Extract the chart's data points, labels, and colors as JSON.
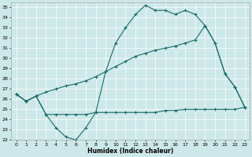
{
  "xlabel": "Humidex (Indice chaleur)",
  "xlim": [
    -0.5,
    23.5
  ],
  "ylim": [
    22,
    35.5
  ],
  "yticks": [
    22,
    23,
    24,
    25,
    26,
    27,
    28,
    29,
    30,
    31,
    32,
    33,
    34,
    35
  ],
  "xticks": [
    0,
    1,
    2,
    3,
    4,
    5,
    6,
    7,
    8,
    9,
    10,
    11,
    12,
    13,
    14,
    15,
    16,
    17,
    18,
    19,
    20,
    21,
    22,
    23
  ],
  "bg_color": "#cde8e8",
  "line_color": "#1a6b6b",
  "grid_color": "#ffffff",
  "line1_x": [
    0,
    1,
    2,
    3,
    4,
    5,
    6,
    7,
    8,
    9,
    10,
    11,
    12,
    13,
    14,
    15,
    16,
    17,
    18,
    19,
    20,
    21,
    22,
    23
  ],
  "line1_y": [
    26.5,
    25.8,
    26.3,
    24.5,
    23.2,
    22.3,
    22.0,
    23.2,
    24.7,
    28.7,
    31.5,
    33.0,
    34.3,
    35.2,
    34.7,
    34.7,
    34.3,
    34.7,
    34.3,
    33.2,
    31.5,
    28.5,
    27.2,
    25.2
  ],
  "line2_x": [
    0,
    1,
    2,
    3,
    4,
    5,
    6,
    7,
    8,
    9,
    10,
    11,
    12,
    13,
    14,
    15,
    16,
    17,
    18,
    19,
    20,
    21,
    22,
    23
  ],
  "line2_y": [
    26.5,
    25.8,
    26.3,
    26.7,
    27.0,
    27.3,
    27.5,
    27.8,
    28.2,
    28.7,
    29.2,
    29.7,
    30.2,
    30.5,
    30.8,
    31.0,
    31.2,
    31.5,
    31.8,
    33.2,
    31.5,
    28.5,
    27.2,
    25.2
  ],
  "line3_x": [
    0,
    1,
    2,
    3,
    4,
    5,
    6,
    7,
    8,
    9,
    10,
    11,
    12,
    13,
    14,
    15,
    16,
    17,
    18,
    19,
    20,
    21,
    22,
    23
  ],
  "line3_y": [
    26.5,
    25.8,
    26.3,
    24.5,
    24.5,
    24.5,
    24.5,
    24.5,
    24.7,
    24.7,
    24.7,
    24.7,
    24.7,
    24.7,
    24.7,
    24.9,
    24.9,
    25.0,
    25.0,
    25.0,
    25.0,
    25.0,
    25.0,
    25.2
  ]
}
